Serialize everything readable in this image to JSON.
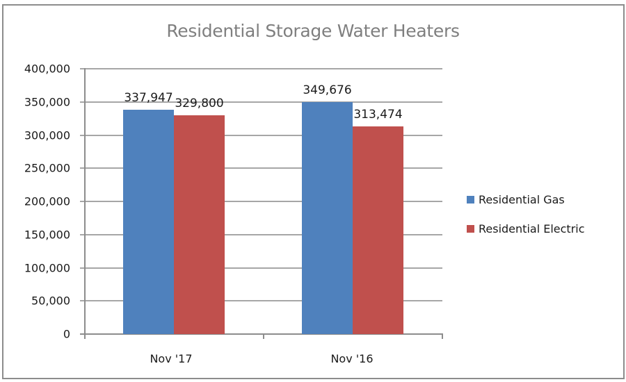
{
  "chart_data": {
    "type": "bar",
    "title": "Residential Storage Water Heaters",
    "xlabel": "",
    "ylabel": "",
    "categories": [
      "Nov '17",
      "Nov '16"
    ],
    "series": [
      {
        "name": "Residential Gas",
        "color": "#4F81BD",
        "values": [
          337947,
          349676
        ],
        "labels": [
          "337,947",
          "349,676"
        ]
      },
      {
        "name": "Residential Electric",
        "color": "#C0504D",
        "values": [
          329800,
          313474
        ],
        "labels": [
          "329,800",
          "313,474"
        ]
      }
    ],
    "ylim": [
      0,
      400000
    ],
    "yticks": [
      "0",
      "50,000",
      "100,000",
      "150,000",
      "200,000",
      "250,000",
      "300,000",
      "350,000",
      "400,000"
    ],
    "ytick_values": [
      0,
      50000,
      100000,
      150000,
      200000,
      250000,
      300000,
      350000,
      400000
    ],
    "grid": true,
    "legend_position": "right"
  }
}
